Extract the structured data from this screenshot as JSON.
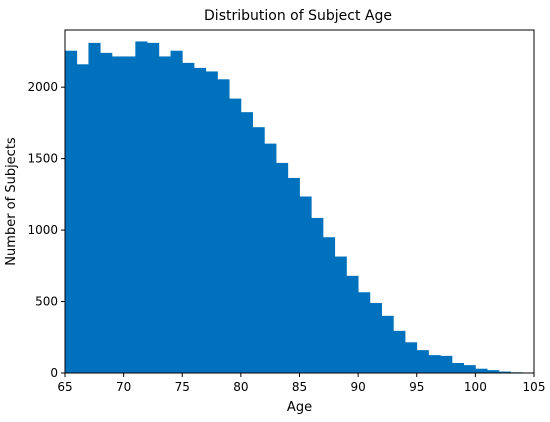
{
  "chart_data": {
    "type": "bar",
    "title": "Distribution of Subject Age",
    "xlabel": "Age",
    "ylabel": "Number of Subjects",
    "xlim": [
      65,
      105
    ],
    "ylim": [
      0,
      2400
    ],
    "x_ticks": [
      65,
      70,
      75,
      80,
      85,
      90,
      95,
      100,
      105
    ],
    "y_ticks": [
      0,
      500,
      1000,
      1500,
      2000
    ],
    "grid": false,
    "bar_color": "#0072bd",
    "bin_width": 1,
    "bins": [
      65,
      66,
      67,
      68,
      69,
      70,
      71,
      72,
      73,
      74,
      75,
      76,
      77,
      78,
      79,
      80,
      81,
      82,
      83,
      84,
      85,
      86,
      87,
      88,
      89,
      90,
      91,
      92,
      93,
      94,
      95,
      96,
      97,
      98,
      99,
      100,
      101,
      102,
      103,
      104
    ],
    "values": [
      2255,
      2160,
      2310,
      2240,
      2215,
      2215,
      2320,
      2310,
      2215,
      2255,
      2170,
      2135,
      2110,
      2055,
      1920,
      1825,
      1720,
      1605,
      1470,
      1365,
      1235,
      1085,
      950,
      815,
      680,
      565,
      490,
      400,
      295,
      215,
      160,
      125,
      120,
      70,
      55,
      30,
      20,
      10,
      5,
      2
    ]
  }
}
